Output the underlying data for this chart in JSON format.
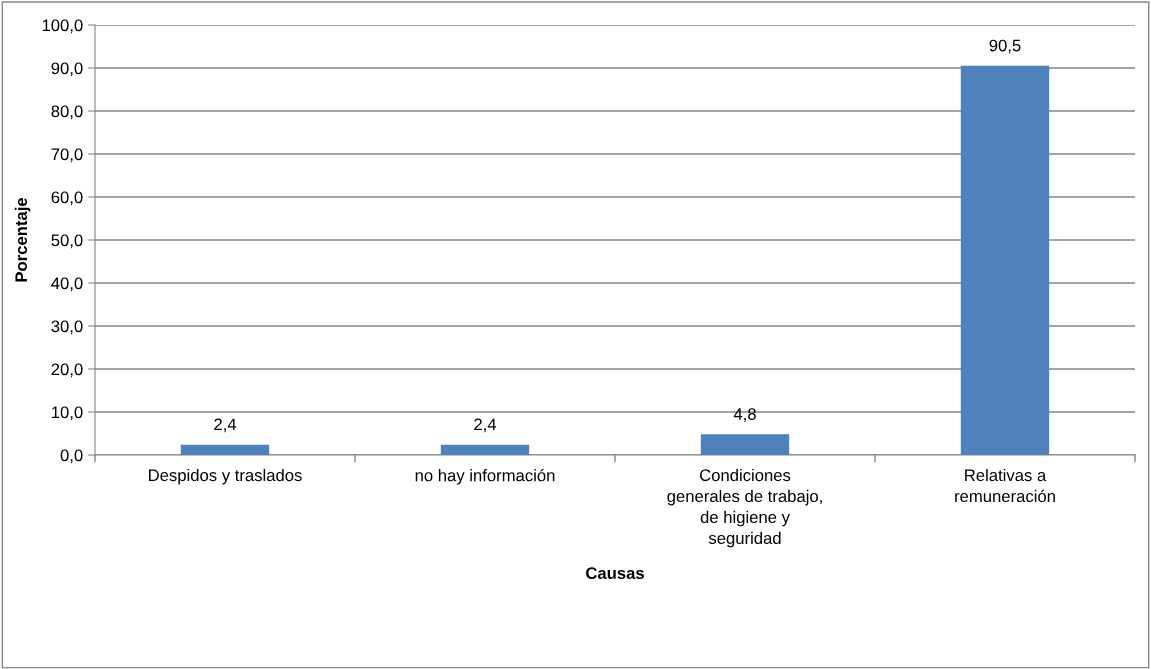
{
  "chart_data": {
    "type": "bar",
    "xlabel": "Causas",
    "ylabel": "Porcentaje",
    "categories": [
      "Despidos y traslados",
      "no hay información",
      "Condiciones\ngenerales de trabajo,\nde higiene y\nseguridad",
      "Relativas a\nremuneración"
    ],
    "values": [
      2.4,
      2.4,
      4.8,
      90.5
    ],
    "color": "#4f81bd",
    "value_labels": [
      "2,4",
      "2,4",
      "4,8",
      "90,5"
    ],
    "ylim": [
      0,
      100
    ],
    "yticks": [
      {
        "value": 0,
        "label": "0,0"
      },
      {
        "value": 10,
        "label": "10,0"
      },
      {
        "value": 20,
        "label": "20,0"
      },
      {
        "value": 30,
        "label": "30,0"
      },
      {
        "value": 40,
        "label": "40,0"
      },
      {
        "value": 50,
        "label": "50,0"
      },
      {
        "value": 60,
        "label": "60,0"
      },
      {
        "value": 70,
        "label": "70,0"
      },
      {
        "value": 80,
        "label": "80,0"
      },
      {
        "value": 90,
        "label": "90,0"
      },
      {
        "value": 100,
        "label": "100,0"
      }
    ],
    "grid": "y",
    "legend": false
  }
}
